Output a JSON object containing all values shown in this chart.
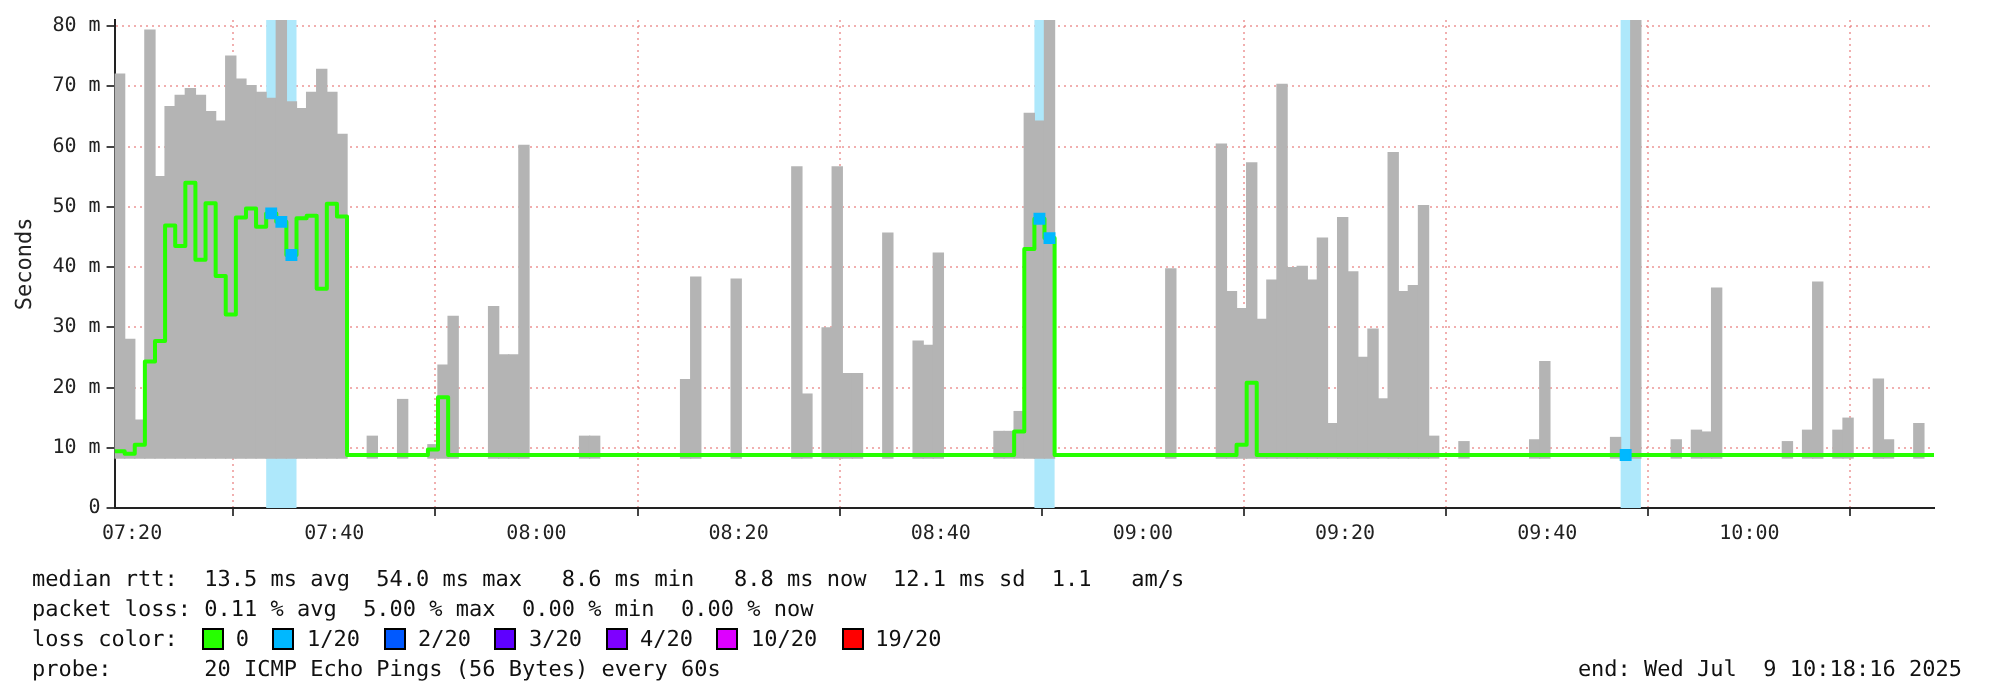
{
  "chart_data": {
    "type": "step",
    "ylabel": "Seconds",
    "legend_title": "loss color:",
    "legend": "bottom",
    "grid": true,
    "xlim": [
      7.3044,
      10.3044
    ],
    "xticks": [
      {
        "value": 7.3333,
        "label": "07:20"
      },
      {
        "value": 7.6667,
        "label": "07:40"
      },
      {
        "value": 8,
        "label": "08:00"
      },
      {
        "value": 8.3333,
        "label": "08:20"
      },
      {
        "value": 8.6667,
        "label": "08:40"
      },
      {
        "value": 9,
        "label": "09:00"
      },
      {
        "value": 9.3333,
        "label": "09:20"
      },
      {
        "value": 9.6667,
        "label": "09:40"
      },
      {
        "value": 10,
        "label": "10:00"
      }
    ],
    "ylim": [
      0,
      81
    ],
    "yticks": [
      0,
      {
        "value": 10,
        "label": "10 m"
      },
      {
        "value": 20,
        "label": "20 m"
      },
      {
        "value": 30,
        "label": "30 m"
      },
      {
        "value": 40,
        "label": "40 m"
      },
      {
        "value": 50,
        "label": "50 m"
      },
      {
        "value": 60,
        "label": "60 m"
      },
      {
        "value": 70,
        "label": "70 m"
      },
      {
        "value": 80,
        "label": "80 m"
      }
    ],
    "bands": [
      {
        "axis": "x",
        "from": 7.5544,
        "to": 7.6044,
        "color": "#aee8fb"
      },
      {
        "axis": "x",
        "from": 8.8211,
        "to": 8.8544,
        "color": "#aee8fb"
      },
      {
        "axis": "x",
        "from": 9.7877,
        "to": 9.8211,
        "color": "#aee8fb"
      }
    ],
    "series": [
      {
        "type": "bar",
        "color": "#b4b4b4",
        "x": [
          7.3127,
          7.3294,
          7.346,
          7.3627,
          7.3794,
          7.396,
          7.4127,
          7.4294,
          7.446,
          7.4627,
          7.4794,
          7.496,
          7.5127,
          7.5294,
          7.546,
          7.5627,
          7.5794,
          7.596,
          7.6127,
          7.6294,
          7.646,
          7.6627,
          7.6794,
          7.7294,
          7.7794,
          7.8294,
          7.846,
          7.8627,
          7.9294,
          7.946,
          7.9627,
          7.9794,
          8.0794,
          8.096,
          8.246,
          8.2627,
          8.3294,
          8.4294,
          8.446,
          8.4794,
          8.496,
          8.5127,
          8.5294,
          8.5794,
          8.6294,
          8.646,
          8.6627,
          8.7627,
          8.7794,
          8.796,
          8.8127,
          8.8294,
          8.846,
          9.046,
          9.1294,
          9.146,
          9.1627,
          9.1794,
          9.196,
          9.2127,
          9.2294,
          9.246,
          9.2627,
          9.2794,
          9.296,
          9.3127,
          9.3294,
          9.346,
          9.3627,
          9.3794,
          9.396,
          9.4127,
          9.4294,
          9.446,
          9.4627,
          9.4794,
          9.5294,
          9.646,
          9.6627,
          9.7794,
          9.8127,
          9.8794,
          9.9127,
          9.9294,
          9.946,
          10.0627,
          10.096,
          10.1127,
          10.146,
          10.1627,
          10.2127,
          10.2294,
          10.2794
        ],
        "base": [
          8.3,
          8.3,
          8.3,
          8.3,
          8.3,
          8.3,
          8.3,
          8.3,
          8.3,
          8.3,
          8.3,
          8.3,
          8.3,
          8.3,
          8.3,
          8.3,
          8.3,
          8.3,
          8.3,
          8.3,
          8.3,
          8.3,
          8.3,
          8.3,
          8.3,
          8.3,
          8.3,
          8.3,
          8.3,
          8.3,
          8.3,
          8.3,
          8.3,
          8.3,
          8.3,
          8.3,
          8.3,
          8.3,
          8.3,
          8.3,
          8.3,
          8.3,
          8.3,
          8.3,
          8.3,
          8.3,
          8.3,
          8.3,
          8.3,
          8.3,
          8.3,
          8.3,
          8.3,
          8.3,
          8.3,
          8.3,
          8.3,
          8.3,
          8.3,
          8.3,
          8.3,
          8.3,
          8.3,
          8.3,
          8.3,
          8.3,
          8.3,
          8.3,
          8.3,
          8.3,
          8.3,
          8.3,
          8.3,
          8.3,
          8.3,
          8.3,
          8.3,
          8.3,
          8.3,
          8.3,
          8.3,
          8.3,
          8.3,
          8.3,
          8.3,
          8.3,
          8.3,
          8.3,
          8.3,
          8.3,
          8.3,
          8.3,
          8.3
        ],
        "values": [
          63.7,
          19.7,
          6.3,
          71,
          46.7,
          58.3,
          60.2,
          61.3,
          60.2,
          57.5,
          55.9,
          66.7,
          62.9,
          61.8,
          60.7,
          59.7,
          72.7,
          59.1,
          58,
          60.7,
          64.5,
          60.7,
          53.7,
          3.6,
          9.7,
          2.2,
          15.4,
          23.5,
          25.1,
          17.1,
          17.1,
          51.9,
          3.6,
          3.6,
          13,
          30,
          29.7,
          48.3,
          10.6,
          21.6,
          48.3,
          14,
          14,
          37.3,
          19.4,
          18.7,
          34,
          4.4,
          4.4,
          7.7,
          57.2,
          55.9,
          72.7,
          31.4,
          52.1,
          27.6,
          24.8,
          49,
          23,
          29.5,
          62,
          31.6,
          31.8,
          29.5,
          36.5,
          5.7,
          39.9,
          30.9,
          16.7,
          21.4,
          9.8,
          50.7,
          27.6,
          28.6,
          41.9,
          3.6,
          2.7,
          3,
          16,
          3.4,
          72.7,
          3,
          4.6,
          4.3,
          28.2,
          2.7,
          4.6,
          29.2,
          4.6,
          6.6,
          13.1,
          3,
          5.7
        ]
      },
      {
        "name": "0",
        "color": "#26ff00",
        "x": [
          7.3044,
          7.3211,
          7.3377,
          7.3544,
          7.3711,
          7.3877,
          7.4044,
          7.4211,
          7.4377,
          7.4544,
          7.4711,
          7.4877,
          7.5044,
          7.5211,
          7.5377,
          7.5544,
          7.5711,
          7.5877,
          7.6044,
          7.6211,
          7.6377,
          7.6544,
          7.6711,
          7.6877,
          7.8211,
          7.8377,
          7.8544,
          8.7877,
          8.8044,
          8.8211,
          8.8377,
          8.8544,
          9.1544,
          9.1711,
          9.1877,
          9.7877,
          9.8044,
          10.3044
        ],
        "values": [
          9.4,
          9,
          10.5,
          24.3,
          27.7,
          46.9,
          43.5,
          54,
          41.2,
          50.6,
          38.5,
          32.1,
          48.2,
          49.7,
          46.7,
          48.9,
          47.5,
          42,
          48.1,
          48.5,
          36.4,
          50.5,
          48.4,
          8.8,
          9.7,
          18.4,
          8.8,
          12.7,
          43,
          48,
          44.8,
          8.8,
          10.5,
          20.8,
          8.8,
          8.8,
          8.8,
          8.8
        ]
      },
      {
        "type": "scatter",
        "name": "1/20",
        "color": "#00b8ff",
        "marker": "square",
        "x": [
          7.5627,
          7.5794,
          7.596,
          8.8294,
          8.846,
          9.796
        ],
        "values": [
          48.9,
          47.5,
          42,
          48,
          44.8,
          8.8
        ]
      },
      {
        "type": "line",
        "name": "2/20",
        "color": "#0059ff"
      },
      {
        "type": "line",
        "name": "3/20",
        "color": "#5e00ff"
      },
      {
        "type": "line",
        "name": "4/20",
        "color": "#7e00ff"
      },
      {
        "type": "line",
        "name": "10/20",
        "color": "#dd00ff"
      },
      {
        "type": "line",
        "name": "19/20",
        "color": "#ff0000"
      }
    ],
    "annotations": [
      "median rtt:  13.5 ms avg  54.0 ms max   8.6 ms min   8.8 ms now  12.1 ms sd  1.1   am/s",
      "packet loss: 0.11 % avg  5.00 % max  0.00 % min  0.00 % now",
      "probe:       20 ICMP Echo Pings (56 Bytes) every 60s",
      "end: Wed Jul  9 10:18:16 2025"
    ]
  }
}
